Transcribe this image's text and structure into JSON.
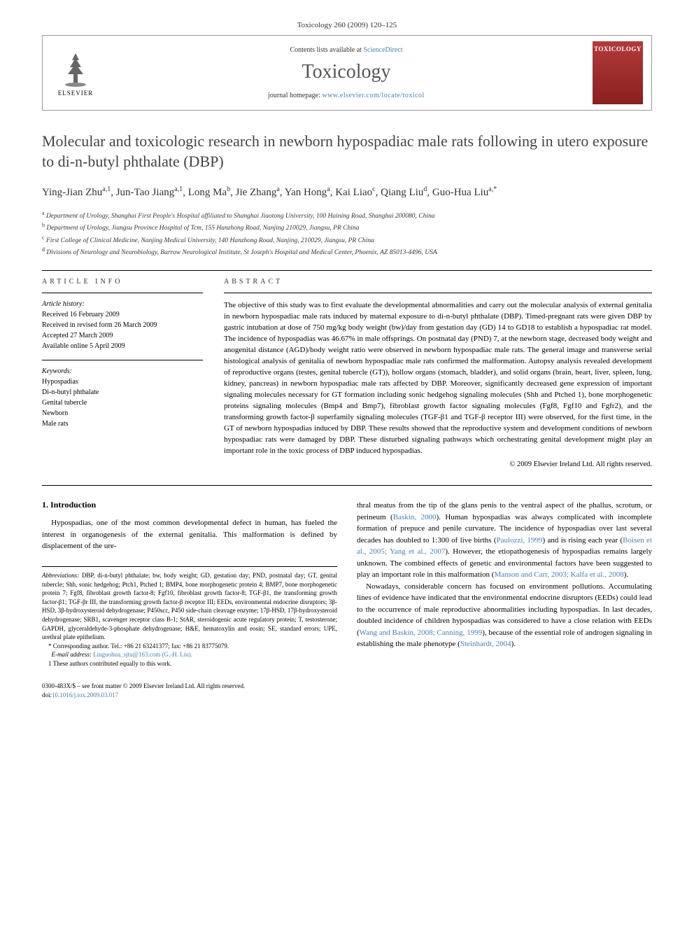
{
  "header": {
    "citation_line": "Toxicology 260 (2009) 120–125",
    "contents_line_pre": "Contents lists available at ",
    "contents_line_link": "ScienceDirect",
    "journal_name": "Toxicology",
    "homepage_pre": "journal homepage: ",
    "homepage_link": "www.elsevier.com/locate/toxicol",
    "publisher_label": "ELSEVIER",
    "cover_label": "TOXICOLOGY"
  },
  "article": {
    "title": "Molecular and toxicologic research in newborn hypospadiac male rats following in utero exposure to di-n-butyl phthalate (DBP)",
    "authors_html": "Ying-Jian Zhu<sup>a,1</sup>, Jun-Tao Jiang<sup>a,1</sup>, Long Ma<sup>b</sup>, Jie Zhang<sup>a</sup>, Yan Hong<sup>a</sup>, Kai Liao<sup>c</sup>, Qiang Liu<sup>d</sup>, Guo-Hua Liu<sup>a,*</sup>",
    "affiliations": [
      "a Department of Urology, Shanghai First People's Hospital affiliated to Shanghai Jiaotong University, 100 Haining Road, Shanghai 200080, China",
      "b Department of Urology, Jiangsu Province Hospital of Tcm, 155 Hanzhong Road, Nanjing 210029, Jiangsu, PR China",
      "c First College of Clinical Medicine, Nanjing Medical University, 140 Hanzhong Road, Nanjing, 210029, Jiangsu, PR China",
      "d Divisions of Neurology and Neurobiology, Barrow Neurological Institute, St Joseph's Hospital and Medical Center, Phoenix, AZ 85013-4496, USA"
    ]
  },
  "info": {
    "heading": "article info",
    "history_label": "Article history:",
    "history": "Received 16 February 2009\nReceived in revised form 26 March 2009\nAccepted 27 March 2009\nAvailable online 5 April 2009",
    "keywords_label": "Keywords:",
    "keywords": "Hypospadias\nDi-n-butyl phthalate\nGenital tubercle\nNewborn\nMale rats"
  },
  "abstract": {
    "heading": "abstract",
    "text": "The objective of this study was to first evaluate the developmental abnormalities and carry out the molecular analysis of external genitalia in newborn hypospadiac male rats induced by maternal exposure to di-n-butyl phthalate (DBP). Timed-pregnant rats were given DBP by gastric intubation at dose of 750 mg/kg body weight (bw)/day from gestation day (GD) 14 to GD18 to establish a hypospadiac rat model. The incidence of hypospadias was 46.67% in male offsprings. On postnatal day (PND) 7, at the newborn stage, decreased body weight and anogenital distance (AGD)/body weight ratio were observed in newborn hypospadiac male rats. The general image and transverse serial histological analysis of genitalia of newborn hypospadiac male rats confirmed the malformation. Autopsy analysis revealed development of reproductive organs (testes, genital tubercle (GT)), hollow organs (stomach, bladder), and solid organs (brain, heart, liver, spleen, lung, kidney, pancreas) in newborn hypospadiac male rats affected by DBP. Moreover, significantly decreased gene expression of important signaling molecules necessary for GT formation including sonic hedgehog signaling molecules (Shh and Ptched 1), bone morphogenetic proteins signaling molecules (Bmp4 and Bmp7), fibroblast growth factor signaling molecules (Fgf8, Fgf10 and Fgfr2), and the transforming growth factor-β superfamily signaling molecules (TGF-β1 and TGF-β receptor III) were observed, for the first time, in the GT of newborn hypospadias induced by DBP. These results showed that the reproductive system and development conditions of newborn hypospadiac rats were damaged by DBP. These disturbed signaling pathways which orchestrating genital development might play an important role in the toxic process of DBP induced hypospadias.",
    "copyright": "© 2009 Elsevier Ireland Ltd. All rights reserved."
  },
  "body": {
    "section1_heading": "1.  Introduction",
    "left_p1": "Hypospadias, one of the most common developmental defect in human, has fueled the interest in organogenesis of the external genitalia. This malformation is defined by displacement of the ure-",
    "right_p1_html": "thral meatus from the tip of the glans penis to the ventral aspect of the phallus, scrotum, or perineum (<span class=\"cite\">Baskin, 2000</span>). Human hypospadias was always complicated with incomplete formation of prepuce and penile curvature. The incidence of hypospadias over last several decades has doubled to 1:300 of live births (<span class=\"cite\">Paulozzi, 1999</span>) and is rising each year (<span class=\"cite\">Boisen et al., 2005; Yang et al., 2007</span>). However, the etiopathogenesis of hypospadias remains largely unknown. The combined effects of genetic and environmental factors have been suggested to play an important role in this malformation (<span class=\"cite\">Manson and Carr, 2003; Kalfa et al., 2008</span>).",
    "right_p2_html": "Nowadays, considerable concern has focused on environment pollutions. Accumulating lines of evidence have indicated that the environmental endocrine disruptors (EEDs) could lead to the occurrence of male reproductive abnormalities including hypospadias. In last decades, doubled incidence of children hypospadias was considered to have a close relation with EEDs (<span class=\"cite\">Wang and Baskin, 2008; Canning, 1999</span>), because of the essential role of androgen signaling in establishing the male phenotype (<span class=\"cite\">Steinhardt, 2004</span>)."
  },
  "footnotes": {
    "abbrev_label": "Abbreviations:",
    "abbrev_text": " DBP, di-n-butyl phthalate; bw, body weight; GD, gestation day; PND, postnatal day; GT, genital tubercle; Shh, sonic hedgehog; Ptch1, Ptched 1; BMP4, bone morphogenetic protein 4; BMP7, bone morphogenetic protein 7; Fgf8, fibroblast growth factor-8; Fgf10, fibroblast growth factor-8; TGF-β1, the transforming growth factor-β1; TGF-βr III, the transforming growth factor-β receptor III; EEDs, environmental endocrine disruptors; 3β-HSD, 3β-hydroxysteroid dehydrogenase; P450scc, P450 side-chain cleavage enzyme; 17β-HSD, 17β-hydroxysteroid dehydrogenase; SRB1, scavenger receptor class B-1; StAR, steroidogenic acute regulatory protein; T, testosterone; GAPDH, glyceraldehyde-3-phosphate dehydrogenase; H&E, hematoxylin and eosin; SE, standard errors; UPE, urethral plate epithelium.",
    "corresponding": "* Corresponding author. Tel.: +86 21 63241377; fax: +86 21 83775079.",
    "email_label": "E-mail address:",
    "email": " Liuguohua_sjtu@163.com (G.-H. Liu).",
    "equal": "1 These authors contributed equally to this work."
  },
  "footer": {
    "line1": "0300-483X/$ – see front matter © 2009 Elsevier Ireland Ltd. All rights reserved.",
    "doi_pre": "doi:",
    "doi": "10.1016/j.tox.2009.03.017"
  },
  "colors": {
    "link": "#4a7fb0",
    "cover_bg": "#8a2020"
  }
}
